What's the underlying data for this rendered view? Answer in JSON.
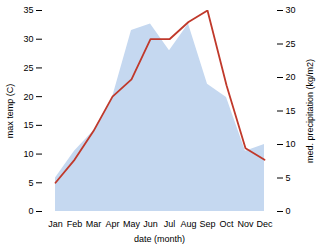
{
  "chart_data": {
    "type": "line",
    "categories": [
      "Jan",
      "Feb",
      "Mar",
      "Apr",
      "May",
      "Jun",
      "Jul",
      "Aug",
      "Sep",
      "Oct",
      "Nov",
      "Dec"
    ],
    "xlabel": "date (month)",
    "ylabel": "max temp (C)",
    "y2label": "med. precipitation (kg/m2)",
    "ylim": [
      0,
      35
    ],
    "yticks": [
      0,
      5,
      10,
      15,
      20,
      25,
      30,
      35
    ],
    "y2lim": [
      0,
      30
    ],
    "y2ticks": [
      0,
      5,
      10,
      15,
      20,
      25,
      30
    ],
    "series": [
      {
        "type": "area",
        "axis": "y2",
        "color": "#c5d8f0",
        "values": [
          5,
          9,
          12,
          17,
          27,
          28,
          24,
          28,
          19,
          17,
          9,
          10
        ]
      },
      {
        "type": "line",
        "axis": "y",
        "color": "#c0392b",
        "values": [
          5,
          9,
          14,
          20,
          23,
          30,
          30,
          33,
          35,
          22,
          11,
          9
        ]
      }
    ]
  }
}
